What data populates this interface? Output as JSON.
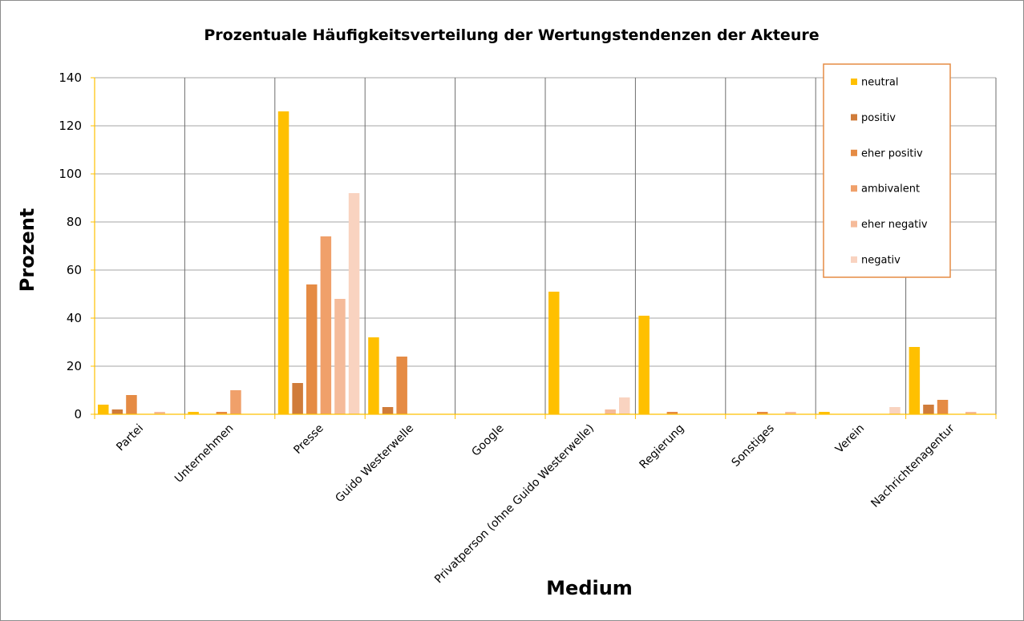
{
  "chart_data": {
    "type": "bar",
    "title": "Prozentuale Häufigkeitsverteilung der Wertungstendenzen der Akteure",
    "xlabel": "Medium",
    "ylabel": "Prozent",
    "ylim": [
      0,
      140
    ],
    "yticks": [
      "0",
      "20",
      "40",
      "60",
      "80",
      "100",
      "120",
      "140"
    ],
    "grid": true,
    "legend_position": "top-right",
    "categories": [
      "Partei",
      "Unternehmen",
      "Presse",
      "Guido Westerwelle",
      "Google",
      "Privatperson (ohne Guido Westerwelle)",
      "Regierung",
      "Sonstiges",
      "Verein",
      "Nachrichtenagentur"
    ],
    "series": [
      {
        "name": "neutral",
        "color": "#FFC000",
        "values": [
          4,
          1,
          126,
          32,
          0,
          51,
          41,
          0,
          1,
          28
        ]
      },
      {
        "name": "positiv",
        "color": "#D07C3A",
        "values": [
          2,
          0,
          13,
          3,
          0,
          0,
          0,
          0,
          0,
          4
        ]
      },
      {
        "name": "eher positiv",
        "color": "#E58B44",
        "values": [
          8,
          1,
          54,
          24,
          0,
          0,
          1,
          1,
          0,
          6
        ]
      },
      {
        "name": "ambivalent",
        "color": "#F0A06A",
        "values": [
          0,
          10,
          74,
          0,
          0,
          0,
          0,
          0,
          0,
          0
        ]
      },
      {
        "name": "eher negativ",
        "color": "#F5BB9A",
        "values": [
          1,
          0,
          48,
          0,
          0,
          2,
          0,
          1,
          0,
          1
        ]
      },
      {
        "name": "negativ",
        "color": "#F9D3C0",
        "values": [
          0,
          0,
          92,
          0,
          0,
          7,
          0,
          0,
          3,
          0
        ]
      }
    ]
  }
}
